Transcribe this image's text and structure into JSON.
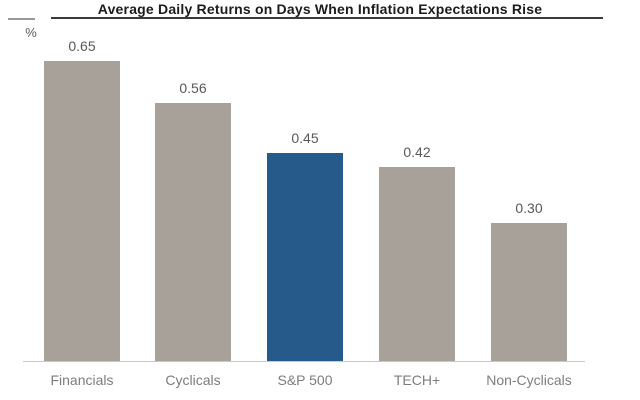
{
  "chart_data": {
    "type": "bar",
    "title": "Average Daily Returns on Days When Inflation Expectations Rise",
    "ylabel": "%",
    "xlabel": "",
    "categories": [
      "Financials",
      "Cyclicals",
      "S&P 500",
      "TECH+",
      "Non-Cyclicals"
    ],
    "values": [
      0.65,
      0.56,
      0.45,
      0.42,
      0.3
    ],
    "value_labels": [
      "0.65",
      "0.56",
      "0.45",
      "0.42",
      "0.30"
    ],
    "ylim": [
      0,
      0.78
    ],
    "grid": false,
    "legend": false,
    "highlight_index": 2,
    "colors": {
      "bar": "#a8a19a",
      "highlight": "#255a8b",
      "value_label": "#595959",
      "category_label": "#7d7d7d",
      "axis_line": "#c9c9c9",
      "title": "#1c1c1c"
    }
  }
}
